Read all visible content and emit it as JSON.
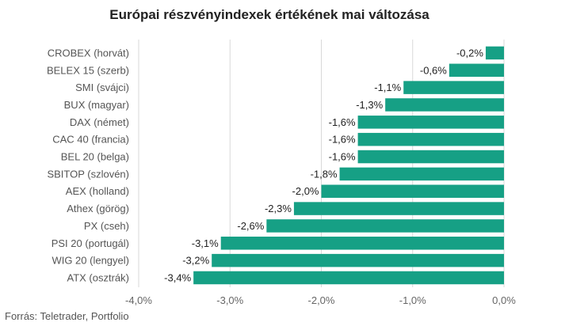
{
  "chart_data": {
    "type": "bar",
    "orientation": "horizontal",
    "title": "Európai részvényindexek értékének mai változása",
    "categories": [
      "CROBEX (horvát)",
      "BELEX 15 (szerb)",
      "SMI (svájci)",
      "BUX (magyar)",
      "DAX (német)",
      "CAC 40 (francia)",
      "BEL 20 (belga)",
      "SBITOP (szlovén)",
      "AEX (holland)",
      "Athex (görög)",
      "PX (cseh)",
      "PSI 20 (portugál)",
      "WIG 20 (lengyel)",
      "ATX (osztrák)"
    ],
    "values": [
      -0.2,
      -0.6,
      -1.1,
      -1.3,
      -1.6,
      -1.6,
      -1.6,
      -1.8,
      -2.0,
      -2.3,
      -2.6,
      -3.1,
      -3.2,
      -3.4
    ],
    "value_labels": [
      "-0,2%",
      "-0,6%",
      "-1,1%",
      "-1,3%",
      "-1,6%",
      "-1,6%",
      "-1,6%",
      "-1,8%",
      "-2,0%",
      "-2,3%",
      "-2,6%",
      "-3,1%",
      "-3,2%",
      "-3,4%"
    ],
    "xlim": [
      -4.0,
      0.0
    ],
    "x_ticks": [
      -4.0,
      -3.0,
      -2.0,
      -1.0,
      0.0
    ],
    "x_tick_labels": [
      "-4,0%",
      "-3,0%",
      "-2,0%",
      "-1,0%",
      "0,0%"
    ],
    "grid": true,
    "bar_color": "#16a085",
    "source": "Forrás: Teletrader, Portfolio"
  }
}
